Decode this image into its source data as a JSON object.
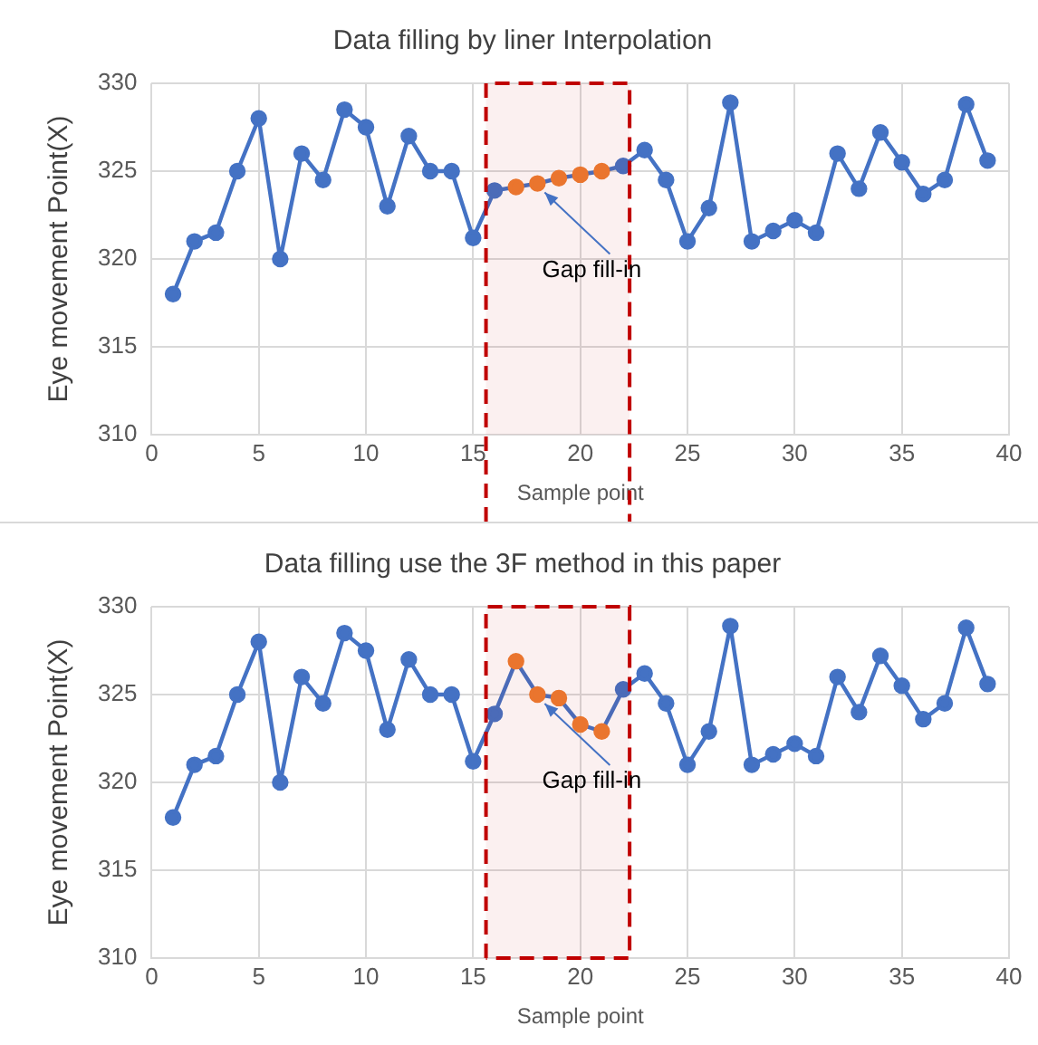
{
  "chart_data": [
    {
      "type": "line",
      "title": "Data filling by liner Interpolation",
      "xlabel": "Sample point",
      "ylabel": "Eye movement Point(X)",
      "x": [
        1,
        2,
        3,
        4,
        5,
        6,
        7,
        8,
        9,
        10,
        11,
        12,
        13,
        14,
        15,
        16,
        17,
        18,
        19,
        20,
        21,
        22,
        23,
        24,
        25,
        26,
        27,
        28,
        29,
        30,
        31,
        32,
        33,
        34,
        35,
        36,
        37,
        38,
        39
      ],
      "series": [
        {
          "color": "#4472c4",
          "colors": [
            "#4472c4",
            "#4472c4",
            "#4472c4",
            "#4472c4",
            "#4472c4",
            "#4472c4",
            "#4472c4",
            "#4472c4",
            "#4472c4",
            "#4472c4",
            "#4472c4",
            "#4472c4",
            "#4472c4",
            "#4472c4",
            "#4472c4",
            "#4472c4",
            "#ed7d31",
            "#ed7d31",
            "#ed7d31",
            "#ed7d31",
            "#ed7d31",
            "#4472c4",
            "#4472c4",
            "#4472c4",
            "#4472c4",
            "#4472c4",
            "#4472c4",
            "#4472c4",
            "#4472c4",
            "#4472c4",
            "#4472c4",
            "#4472c4",
            "#4472c4",
            "#4472c4",
            "#4472c4",
            "#4472c4",
            "#4472c4",
            "#4472c4",
            "#4472c4"
          ],
          "values": [
            318,
            321,
            321.5,
            325,
            328,
            320,
            326,
            324.5,
            328.5,
            327.5,
            323,
            327,
            325,
            325,
            321.2,
            323.9,
            324.1,
            324.3,
            324.6,
            324.8,
            325,
            325.3,
            326.2,
            324.5,
            321,
            322.9,
            328.9,
            321,
            321.6,
            322.2,
            321.5,
            326,
            324,
            327.2,
            325.5,
            323.7,
            324.5,
            328.8,
            325.6
          ]
        }
      ],
      "xlim": [
        0,
        40
      ],
      "xticks": [
        0,
        5,
        10,
        15,
        20,
        25,
        30,
        35,
        40
      ],
      "ylim": [
        310,
        330
      ],
      "yticks": [
        310,
        315,
        320,
        325,
        330
      ],
      "grid": true,
      "legend": false,
      "marker": "circle",
      "line_style": "solid",
      "bands": [
        {
          "axis": "x",
          "from": 15.6,
          "to": 22.3,
          "color": "#c00000"
        }
      ],
      "annotations": [
        {
          "text": "Gap fill-in",
          "x": 18,
          "y": 324.3
        }
      ]
    },
    {
      "type": "line",
      "title": "Data filling use the 3F method in this paper",
      "xlabel": "Sample point",
      "ylabel": "Eye movement Point(X)",
      "x": [
        1,
        2,
        3,
        4,
        5,
        6,
        7,
        8,
        9,
        10,
        11,
        12,
        13,
        14,
        15,
        16,
        17,
        18,
        19,
        20,
        21,
        22,
        23,
        24,
        25,
        26,
        27,
        28,
        29,
        30,
        31,
        32,
        33,
        34,
        35,
        36,
        37,
        38,
        39
      ],
      "series": [
        {
          "color": "#4472c4",
          "colors": [
            "#4472c4",
            "#4472c4",
            "#4472c4",
            "#4472c4",
            "#4472c4",
            "#4472c4",
            "#4472c4",
            "#4472c4",
            "#4472c4",
            "#4472c4",
            "#4472c4",
            "#4472c4",
            "#4472c4",
            "#4472c4",
            "#4472c4",
            "#4472c4",
            "#ed7d31",
            "#ed7d31",
            "#ed7d31",
            "#ed7d31",
            "#ed7d31",
            "#4472c4",
            "#4472c4",
            "#4472c4",
            "#4472c4",
            "#4472c4",
            "#4472c4",
            "#4472c4",
            "#4472c4",
            "#4472c4",
            "#4472c4",
            "#4472c4",
            "#4472c4",
            "#4472c4",
            "#4472c4",
            "#4472c4",
            "#4472c4",
            "#4472c4",
            "#4472c4"
          ],
          "values": [
            318,
            321,
            321.5,
            325,
            328,
            320,
            326,
            324.5,
            328.5,
            327.5,
            323,
            327,
            325,
            325,
            321.2,
            323.9,
            326.9,
            325,
            324.8,
            323.3,
            322.9,
            325.3,
            326.2,
            324.5,
            321,
            322.9,
            328.9,
            321,
            321.6,
            322.2,
            321.5,
            326,
            324,
            327.2,
            325.5,
            323.6,
            324.5,
            328.8,
            325.6
          ]
        }
      ],
      "xlim": [
        0,
        40
      ],
      "xticks": [
        0,
        5,
        10,
        15,
        20,
        25,
        30,
        35,
        40
      ],
      "ylim": [
        310,
        330
      ],
      "yticks": [
        310,
        315,
        320,
        325,
        330
      ],
      "grid": true,
      "legend": false,
      "marker": "circle",
      "line_style": "solid",
      "bands": [
        {
          "axis": "x",
          "from": 15.6,
          "to": 22.3,
          "color": "#c00000"
        }
      ],
      "annotations": [
        {
          "text": "Gap fill-in",
          "x": 18,
          "y": 325
        }
      ]
    }
  ]
}
